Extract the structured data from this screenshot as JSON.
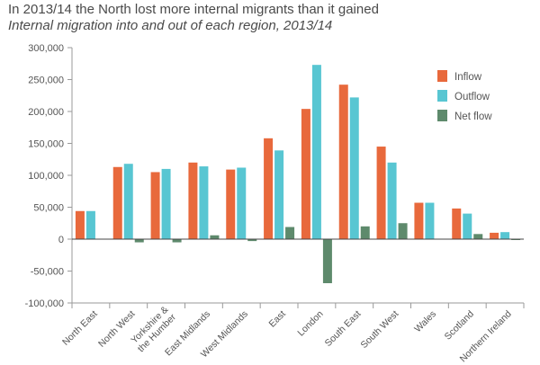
{
  "chart_data": {
    "type": "bar",
    "title": "In 2013/14 the North lost more internal migrants than it gained",
    "subtitle": "Internal migration into and out of each region, 2013/14",
    "xlabel": "",
    "ylabel": "",
    "ylim": [
      -100000,
      300000
    ],
    "yticks": [
      -100000,
      -50000,
      0,
      50000,
      100000,
      150000,
      200000,
      250000,
      300000
    ],
    "ytick_labels": [
      "-100,000",
      "-50,000",
      "0",
      "50,000",
      "100,000",
      "150,000",
      "200,000",
      "250,000",
      "300,000"
    ],
    "legend_position": "top-right",
    "grid": false,
    "categories": [
      "North East",
      "North West",
      "Yorkshire & the Humber",
      "East Midlands",
      "West Midlands",
      "East",
      "London",
      "South East",
      "South West",
      "Wales",
      "Scotland",
      "Northern Ireland"
    ],
    "category_lines": [
      [
        "North East"
      ],
      [
        "North West"
      ],
      [
        "Yorkshire &",
        "the Humber"
      ],
      [
        "East Midlands"
      ],
      [
        "West Midlands"
      ],
      [
        "East"
      ],
      [
        "London"
      ],
      [
        "South East"
      ],
      [
        "South West"
      ],
      [
        "Wales"
      ],
      [
        "Scotland"
      ],
      [
        "Northern Ireland"
      ]
    ],
    "series": [
      {
        "name": "Inflow",
        "color": "#e8693c",
        "values": [
          44000,
          113000,
          105000,
          120000,
          109000,
          158000,
          204000,
          242000,
          145000,
          57000,
          48000,
          10000
        ]
      },
      {
        "name": "Outflow",
        "color": "#58c6d2",
        "values": [
          44000,
          118000,
          110000,
          114000,
          112000,
          139000,
          273000,
          222000,
          120000,
          57000,
          40000,
          11000
        ]
      },
      {
        "name": "Net flow",
        "color": "#5e8a6c",
        "values": [
          0,
          -5000,
          -5000,
          6000,
          -3000,
          19000,
          -69000,
          20000,
          25000,
          0,
          8000,
          -1000
        ]
      }
    ]
  }
}
